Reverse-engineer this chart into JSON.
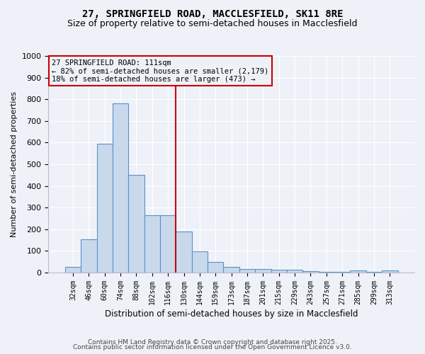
{
  "title1": "27, SPRINGFIELD ROAD, MACCLESFIELD, SK11 8RE",
  "title2": "Size of property relative to semi-detached houses in Macclesfield",
  "xlabel": "Distribution of semi-detached houses by size in Macclesfield",
  "ylabel": "Number of semi-detached properties",
  "categories": [
    "32sqm",
    "46sqm",
    "60sqm",
    "74sqm",
    "88sqm",
    "102sqm",
    "116sqm",
    "130sqm",
    "144sqm",
    "159sqm",
    "173sqm",
    "187sqm",
    "201sqm",
    "215sqm",
    "229sqm",
    "243sqm",
    "257sqm",
    "271sqm",
    "285sqm",
    "299sqm",
    "313sqm"
  ],
  "values": [
    25,
    155,
    595,
    780,
    450,
    265,
    265,
    190,
    97,
    50,
    28,
    15,
    15,
    13,
    13,
    7,
    5,
    5,
    10,
    5,
    10
  ],
  "bar_color": "#c8d9ec",
  "bar_edge_color": "#5b8fc7",
  "vline_x_index": 6,
  "vline_color": "#cc0000",
  "annotation_line1": "27 SPRINGFIELD ROAD: 111sqm",
  "annotation_line2": "← 82% of semi-detached houses are smaller (2,179)",
  "annotation_line3": "18% of semi-detached houses are larger (473) →",
  "annotation_box_color": "#cc0000",
  "ylim": [
    0,
    1000
  ],
  "yticks": [
    0,
    100,
    200,
    300,
    400,
    500,
    600,
    700,
    800,
    900,
    1000
  ],
  "footer1": "Contains HM Land Registry data © Crown copyright and database right 2025.",
  "footer2": "Contains public sector information licensed under the Open Government Licence v3.0.",
  "bg_color": "#eef2f8",
  "grid_color": "#ffffff",
  "title_fontsize": 10,
  "subtitle_fontsize": 9,
  "annotation_fontsize": 7.5,
  "footer_fontsize": 6.5
}
